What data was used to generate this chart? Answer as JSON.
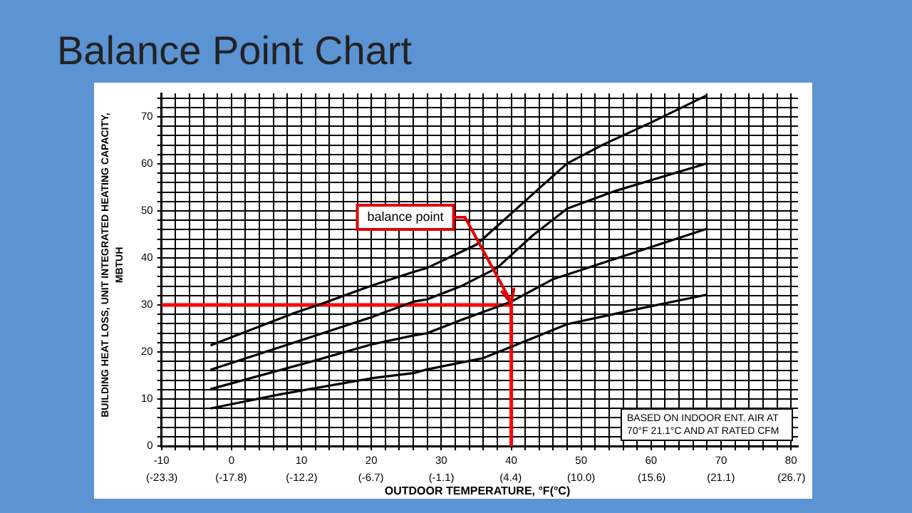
{
  "chart_data": {
    "type": "line",
    "title": "Balance Point Chart",
    "xlabel": "OUTDOOR TEMPERATURE, °F(°C)",
    "ylabel": "BUILDING HEAT LOSS, UNIT INTEGRATED HEATING CAPACITY, MBTUH",
    "series": [
      {
        "color": "#000000",
        "x": [
          -3,
          9,
          13,
          20,
          26,
          28,
          35,
          39,
          44,
          48,
          53,
          60,
          68
        ],
        "values": [
          21.4,
          28.3,
          30.3,
          34.1,
          37,
          37.9,
          42.8,
          48.1,
          54.8,
          60.1,
          64,
          68.8,
          74.6
        ]
      },
      {
        "color": "#000000",
        "x": [
          -3,
          12,
          20,
          26,
          28,
          33,
          38,
          43,
          48,
          55,
          68
        ],
        "values": [
          16.2,
          23.5,
          27.4,
          30.7,
          31.2,
          34.1,
          37.9,
          44.7,
          50.5,
          54.3,
          60.1
        ]
      },
      {
        "color": "#000000",
        "x": [
          -3,
          12,
          20,
          26,
          28,
          33,
          40,
          46,
          53,
          60,
          68
        ],
        "values": [
          12.1,
          18.2,
          21.6,
          23.5,
          24,
          26.9,
          30.7,
          35.5,
          38.9,
          42.3,
          46.2
        ]
      },
      {
        "color": "#000000",
        "x": [
          -3,
          7,
          20,
          26,
          28,
          36,
          40,
          48,
          57,
          68
        ],
        "values": [
          8,
          11,
          14.4,
          15.5,
          16.3,
          18.7,
          21.1,
          25.9,
          28.8,
          32.2
        ]
      },
      {
        "color": "#ff0000",
        "x": [
          -10,
          40
        ],
        "values": [
          30,
          30
        ]
      },
      {
        "color": "#ff0000",
        "x": [
          40,
          40
        ],
        "values": [
          30,
          0
        ]
      }
    ],
    "xlim": [
      -10,
      81
    ],
    "ylim": [
      0,
      75
    ],
    "x2lim": [
      -23.33,
      27.22
    ],
    "x2ticks": [
      {
        "value": -23.3,
        "label": "(-23.3)"
      },
      {
        "value": -17.8,
        "label": "(-17.8)"
      },
      {
        "value": -12.2,
        "label": "(-12.2)"
      },
      {
        "value": -6.7,
        "label": "(-6.7)"
      },
      {
        "value": -1.1,
        "label": "(-1.1)"
      },
      {
        "value": 4.4,
        "label": "(4.4)"
      },
      {
        "value": 10.0,
        "label": "(10.0)"
      },
      {
        "value": 15.6,
        "label": "(15.6)"
      },
      {
        "value": 21.1,
        "label": "(21.1)"
      },
      {
        "value": 26.7,
        "label": "(26.7)"
      }
    ],
    "xticks": [
      -10,
      {
        "value": -8,
        "label": null
      },
      {
        "value": -6,
        "label": null
      },
      {
        "value": -4,
        "label": null
      },
      {
        "value": -2,
        "label": null
      },
      0,
      {
        "value": 2,
        "label": null
      },
      {
        "value": 4,
        "label": null
      },
      {
        "value": 6,
        "label": null
      },
      {
        "value": 8,
        "label": null
      },
      10,
      {
        "value": 12,
        "label": null
      },
      {
        "value": 14,
        "label": null
      },
      {
        "value": 16,
        "label": null
      },
      {
        "value": 18,
        "label": null
      },
      20,
      {
        "value": 22,
        "label": null
      },
      {
        "value": 24,
        "label": null
      },
      {
        "value": 26,
        "label": null
      },
      {
        "value": 28,
        "label": null
      },
      30,
      {
        "value": 32,
        "label": null
      },
      {
        "value": 34,
        "label": null
      },
      {
        "value": 36,
        "label": null
      },
      {
        "value": 38,
        "label": null
      },
      40,
      {
        "value": 42,
        "label": null
      },
      {
        "value": 44,
        "label": null
      },
      {
        "value": 46,
        "label": null
      },
      {
        "value": 48,
        "label": null
      },
      50,
      {
        "value": 52,
        "label": null
      },
      {
        "value": 54,
        "label": null
      },
      {
        "value": 56,
        "label": null
      },
      {
        "value": 58,
        "label": null
      },
      60,
      {
        "value": 62,
        "label": null
      },
      {
        "value": 64,
        "label": null
      },
      {
        "value": 66,
        "label": null
      },
      {
        "value": 68,
        "label": null
      },
      70,
      {
        "value": 72,
        "label": null
      },
      {
        "value": 74,
        "label": null
      },
      {
        "value": 76,
        "label": null
      },
      {
        "value": 78,
        "label": null
      },
      80
    ],
    "yticks": [
      0,
      {
        "value": 2,
        "label": null
      },
      {
        "value": 4,
        "label": null
      },
      {
        "value": 6,
        "label": null
      },
      {
        "value": 8,
        "label": null
      },
      10,
      {
        "value": 12,
        "label": null
      },
      {
        "value": 14,
        "label": null
      },
      {
        "value": 16,
        "label": null
      },
      {
        "value": 18,
        "label": null
      },
      20,
      {
        "value": 22,
        "label": null
      },
      {
        "value": 24,
        "label": null
      },
      {
        "value": 26,
        "label": null
      },
      {
        "value": 28,
        "label": null
      },
      30,
      {
        "value": 32,
        "label": null
      },
      {
        "value": 34,
        "label": null
      },
      {
        "value": 36,
        "label": null
      },
      {
        "value": 38,
        "label": null
      },
      40,
      {
        "value": 42,
        "label": null
      },
      {
        "value": 44,
        "label": null
      },
      {
        "value": 46,
        "label": null
      },
      {
        "value": 48,
        "label": null
      },
      50,
      {
        "value": 52,
        "label": null
      },
      {
        "value": 54,
        "label": null
      },
      {
        "value": 56,
        "label": null
      },
      {
        "value": 58,
        "label": null
      },
      60,
      {
        "value": 62,
        "label": null
      },
      {
        "value": 64,
        "label": null
      },
      {
        "value": 66,
        "label": null
      },
      {
        "value": 68,
        "label": null
      },
      70,
      {
        "value": 72,
        "label": null
      },
      {
        "value": 74,
        "label": null
      }
    ],
    "grid": true,
    "legend": false,
    "marker": "none",
    "line_style": "solid",
    "annotations": [
      {
        "text": "balance point",
        "x": 40,
        "y": 30
      },
      "BASED ON INDOOR ENT. AIR AT 70°F 21.1°C AND AT RATED CFM"
    ]
  }
}
